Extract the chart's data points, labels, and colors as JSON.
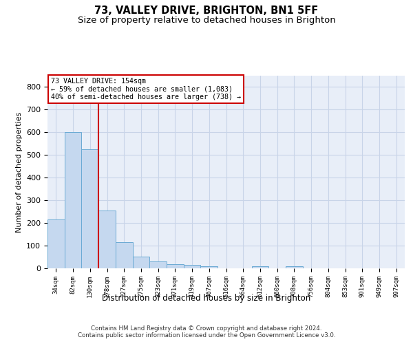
{
  "title1": "73, VALLEY DRIVE, BRIGHTON, BN1 5FF",
  "title2": "Size of property relative to detached houses in Brighton",
  "xlabel": "Distribution of detached houses by size in Brighton",
  "ylabel": "Number of detached properties",
  "bin_labels": [
    "34sqm",
    "82sqm",
    "130sqm",
    "178sqm",
    "227sqm",
    "275sqm",
    "323sqm",
    "371sqm",
    "419sqm",
    "467sqm",
    "516sqm",
    "564sqm",
    "612sqm",
    "660sqm",
    "708sqm",
    "756sqm",
    "804sqm",
    "853sqm",
    "901sqm",
    "949sqm",
    "997sqm"
  ],
  "bar_values": [
    215,
    600,
    525,
    255,
    115,
    53,
    30,
    18,
    15,
    10,
    0,
    0,
    10,
    0,
    8,
    0,
    0,
    0,
    0,
    0,
    0
  ],
  "bar_color": "#c5d8ef",
  "bar_edge_color": "#6aaad4",
  "grid_color": "#c8d4e8",
  "background_color": "#e8eef8",
  "vline_x": 2.5,
  "vline_color": "#cc0000",
  "annotation_line1": "73 VALLEY DRIVE: 154sqm",
  "annotation_line2": "← 59% of detached houses are smaller (1,083)",
  "annotation_line3": "40% of semi-detached houses are larger (738) →",
  "annotation_box_color": "#ffffff",
  "annotation_box_edge": "#cc0000",
  "ylim": [
    0,
    850
  ],
  "yticks": [
    0,
    100,
    200,
    300,
    400,
    500,
    600,
    700,
    800
  ],
  "footer_line1": "Contains HM Land Registry data © Crown copyright and database right 2024.",
  "footer_line2": "Contains public sector information licensed under the Open Government Licence v3.0.",
  "title1_fontsize": 10.5,
  "title2_fontsize": 9.5,
  "figsize": [
    6.0,
    5.0
  ],
  "dpi": 100
}
